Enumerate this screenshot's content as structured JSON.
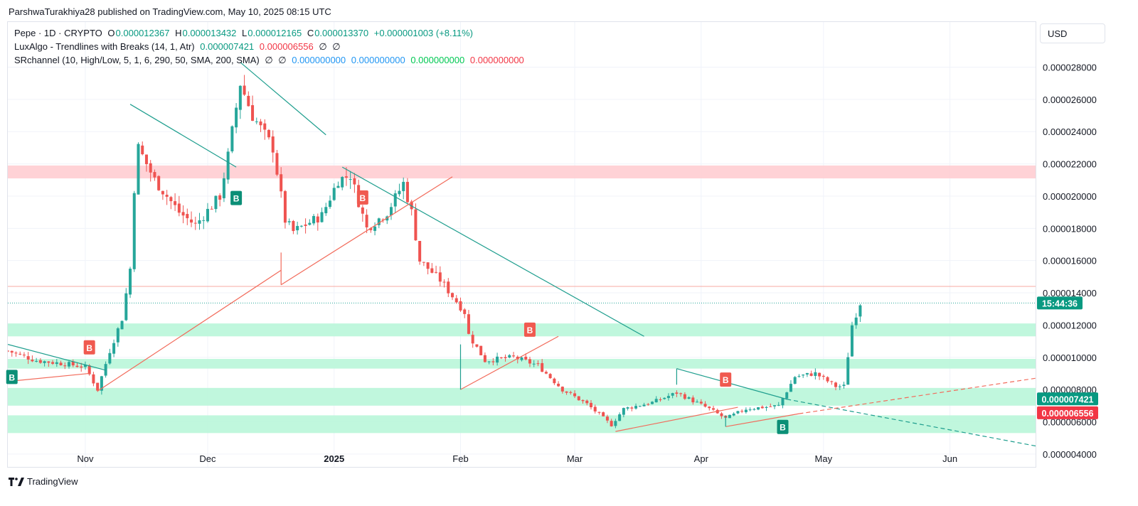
{
  "header": {
    "published": "ParshwaTurakhiya28 published on TradingView.com, May 10, 2025 08:15 UTC"
  },
  "currency": "USD",
  "legend": {
    "symbol": "Pepe · 1D · CRYPTO",
    "o_label": "O",
    "o": "0.000012367",
    "h_label": "H",
    "h": "0.000013432",
    "l_label": "L",
    "l": "0.000012165",
    "c_label": "C",
    "c": "0.000013370",
    "change": "+0.000001003 (+8.11%)",
    "lux_name": "LuxAlgo - Trendlines with Breaks (14, 1, Atr)",
    "lux_v1": "0.000007421",
    "lux_v2": "0.000006556",
    "lux_e1": "∅",
    "lux_e2": "∅",
    "sr_name": "SRchannel (10, High/Low, 5, 1, 6, 290, 50, SMA, 200, SMA)",
    "sr_e1": "∅",
    "sr_e2": "∅",
    "sr_v1": "0.000000000",
    "sr_v2": "0.000000000",
    "sr_v3": "0.000000000",
    "sr_v4": "0.000000000"
  },
  "price_tags": {
    "countdown": "15:44:36",
    "upper": "0.000007421",
    "lower": "0.000006556"
  },
  "branding": "TradingView",
  "colors": {
    "bull": "#26a69a",
    "bear": "#ef5350",
    "zone_red": "#ffcdd2",
    "zone_green": "#b9f6d9",
    "teal_line": "#1e9e8e",
    "red_line": "#f26b5b"
  },
  "chart_data": {
    "type": "candlestick",
    "ylim": [
      3.2e-06,
      3.08e-05
    ],
    "y_ticks": [
      "0.000028000",
      "0.000026000",
      "0.000024000",
      "0.000022000",
      "0.000020000",
      "0.000018000",
      "0.000016000",
      "0.000014000",
      "0.000012000",
      "0.000010000",
      "0.000008000",
      "0.000006000",
      "0.000004000"
    ],
    "y_tick_values": [
      2.8e-05,
      2.6e-05,
      2.4e-05,
      2.2e-05,
      2e-05,
      1.8e-05,
      1.6e-05,
      1.4e-05,
      1.2e-05,
      1e-05,
      8e-06,
      6e-06,
      4e-06
    ],
    "x_labels": [
      {
        "label": "Nov",
        "date": "2024-11-01",
        "bold": false
      },
      {
        "label": "Dec",
        "date": "2024-12-01",
        "bold": false
      },
      {
        "label": "2025",
        "date": "2025-01-01",
        "bold": true
      },
      {
        "label": "Feb",
        "date": "2025-02-01",
        "bold": false
      },
      {
        "label": "Mar",
        "date": "2025-03-01",
        "bold": false
      },
      {
        "label": "Apr",
        "date": "2025-04-01",
        "bold": false
      },
      {
        "label": "May",
        "date": "2025-05-01",
        "bold": false
      },
      {
        "label": "Jun",
        "date": "2025-06-01",
        "bold": false
      }
    ],
    "x_range": [
      "2024-10-13",
      "2025-06-22"
    ],
    "sr_zones": [
      {
        "low": 2.11e-05,
        "high": 2.19e-05,
        "type": "resistance"
      },
      {
        "low": 1.13e-05,
        "high": 1.21e-05,
        "type": "support"
      },
      {
        "low": 9.3e-06,
        "high": 9.9e-06,
        "type": "support"
      },
      {
        "low": 7e-06,
        "high": 8.1e-06,
        "type": "support"
      },
      {
        "low": 5.3e-06,
        "high": 6.4e-06,
        "type": "support"
      }
    ],
    "horizontal_lines": [
      {
        "value": 1.44e-05,
        "color": "#f7a8a3"
      },
      {
        "value": 1.337e-05,
        "color": "#26a69a",
        "dotted": true
      }
    ],
    "trendlines": [
      {
        "color": "teal",
        "points": [
          [
            "2024-10-13",
            1.08e-05
          ],
          [
            "2024-11-06",
            9.2e-06
          ]
        ]
      },
      {
        "color": "teal",
        "points": [
          [
            "2024-11-12",
            2.57e-05
          ],
          [
            "2024-12-08",
            2.18e-05
          ]
        ]
      },
      {
        "color": "teal",
        "points": [
          [
            "2024-12-09",
            2.83e-05
          ],
          [
            "2024-12-30",
            2.38e-05
          ]
        ]
      },
      {
        "color": "teal",
        "points": [
          [
            "2025-01-03",
            2.18e-05
          ],
          [
            "2025-03-18",
            1.13e-05
          ]
        ]
      },
      {
        "color": "teal",
        "points": [
          [
            "2025-03-26",
            9.3e-06
          ],
          [
            "2025-04-22",
            7.4e-06
          ]
        ]
      },
      {
        "color": "teal",
        "dashed": true,
        "points": [
          [
            "2025-04-22",
            7.4e-06
          ],
          [
            "2025-06-22",
            4.5e-06
          ]
        ]
      },
      {
        "color": "red",
        "points": [
          [
            "2024-10-13",
            8.5e-06
          ],
          [
            "2024-11-02",
            9e-06
          ]
        ]
      },
      {
        "color": "red",
        "points": [
          [
            "2024-11-04",
            7.9e-06
          ],
          [
            "2024-12-19",
            1.54e-05
          ]
        ]
      },
      {
        "color": "red",
        "points": [
          [
            "2024-12-19",
            1.45e-05
          ],
          [
            "2025-01-30",
            2.12e-05
          ]
        ]
      },
      {
        "color": "red",
        "points": [
          [
            "2025-02-01",
            8e-06
          ],
          [
            "2025-02-25",
            1.13e-05
          ]
        ]
      },
      {
        "color": "red",
        "points": [
          [
            "2025-03-11",
            5.4e-06
          ],
          [
            "2025-04-10",
            6.9e-06
          ]
        ]
      },
      {
        "color": "red",
        "points": [
          [
            "2025-04-07",
            5.7e-06
          ],
          [
            "2025-04-25",
            6.5e-06
          ]
        ]
      },
      {
        "color": "red",
        "dashed": true,
        "points": [
          [
            "2025-04-25",
            6.5e-06
          ],
          [
            "2025-06-22",
            8.7e-06
          ]
        ]
      },
      {
        "color": "red",
        "points": [
          [
            "2024-12-19",
            1.45e-05
          ],
          [
            "2024-12-19",
            1.65e-05
          ]
        ]
      },
      {
        "color": "teal",
        "points": [
          [
            "2025-02-01",
            8e-06
          ],
          [
            "2025-02-01",
            1.08e-05
          ]
        ]
      },
      {
        "color": "teal",
        "points": [
          [
            "2025-03-26",
            9.3e-06
          ],
          [
            "2025-03-26",
            8.3e-06
          ]
        ]
      },
      {
        "color": "teal",
        "points": [
          [
            "2025-04-07",
            5.7e-06
          ],
          [
            "2025-04-07",
            6.4e-06
          ]
        ]
      }
    ],
    "signals": [
      {
        "label": "B",
        "date": "2024-10-14",
        "value": 9.4e-06,
        "color": "teal",
        "pos": "below"
      },
      {
        "label": "B",
        "date": "2024-11-02",
        "value": 1e-05,
        "color": "red",
        "pos": "above"
      },
      {
        "label": "B",
        "date": "2024-12-08",
        "value": 2.05e-05,
        "color": "teal",
        "pos": "below"
      },
      {
        "label": "B",
        "date": "2025-01-08",
        "value": 1.93e-05,
        "color": "red",
        "pos": "above"
      },
      {
        "label": "B",
        "date": "2025-02-18",
        "value": 1.11e-05,
        "color": "red",
        "pos": "above"
      },
      {
        "label": "B",
        "date": "2025-04-07",
        "value": 8e-06,
        "color": "red",
        "pos": "above"
      },
      {
        "label": "B",
        "date": "2025-04-21",
        "value": 6.3e-06,
        "color": "teal",
        "pos": "below"
      }
    ],
    "ohlc_anchors": [
      [
        "2024-10-13",
        1.04e-05
      ],
      [
        "2024-10-20",
        9.8e-06
      ],
      [
        "2024-10-27",
        9.6e-06
      ],
      [
        "2024-11-01",
        9.4e-06
      ],
      [
        "2024-11-04",
        8e-06
      ],
      [
        "2024-11-07",
        1.04e-05
      ],
      [
        "2024-11-10",
        1.24e-05
      ],
      [
        "2024-11-12",
        1.55e-05
      ],
      [
        "2024-11-13",
        2.05e-05
      ],
      [
        "2024-11-14",
        2.3e-05
      ],
      [
        "2024-11-18",
        2.1e-05
      ],
      [
        "2024-11-24",
        1.9e-05
      ],
      [
        "2024-11-28",
        1.82e-05
      ],
      [
        "2024-12-04",
        2e-05
      ],
      [
        "2024-12-06",
        2.25e-05
      ],
      [
        "2024-12-09",
        2.7e-05
      ],
      [
        "2024-12-12",
        2.5e-05
      ],
      [
        "2024-12-17",
        2.3e-05
      ],
      [
        "2024-12-20",
        1.85e-05
      ],
      [
        "2024-12-22",
        1.78e-05
      ],
      [
        "2024-12-29",
        1.88e-05
      ],
      [
        "2025-01-02",
        2.1e-05
      ],
      [
        "2025-01-05",
        2.13e-05
      ],
      [
        "2025-01-09",
        1.8e-05
      ],
      [
        "2025-01-14",
        1.9e-05
      ],
      [
        "2025-01-18",
        2.08e-05
      ],
      [
        "2025-01-20",
        1.9e-05
      ],
      [
        "2025-01-22",
        1.6e-05
      ],
      [
        "2025-01-27",
        1.48e-05
      ],
      [
        "2025-02-02",
        1.28e-05
      ],
      [
        "2025-02-03",
        1.14e-05
      ],
      [
        "2025-02-07",
        9.8e-06
      ],
      [
        "2025-02-14",
        1e-05
      ],
      [
        "2025-02-20",
        9.5e-06
      ],
      [
        "2025-02-26",
        8e-06
      ],
      [
        "2025-03-04",
        7.1e-06
      ],
      [
        "2025-03-10",
        5.8e-06
      ],
      [
        "2025-03-13",
        6.8e-06
      ],
      [
        "2025-03-20",
        7.2e-06
      ],
      [
        "2025-03-26",
        7.8e-06
      ],
      [
        "2025-04-03",
        6.8e-06
      ],
      [
        "2025-04-07",
        6.2e-06
      ],
      [
        "2025-04-12",
        6.8e-06
      ],
      [
        "2025-04-20",
        7e-06
      ],
      [
        "2025-04-24",
        8.8e-06
      ],
      [
        "2025-04-29",
        9e-06
      ],
      [
        "2025-05-04",
        8.2e-06
      ],
      [
        "2025-05-06",
        8.2e-06
      ],
      [
        "2025-05-08",
        1.2e-05
      ],
      [
        "2025-05-10",
        1.337e-05
      ]
    ]
  }
}
